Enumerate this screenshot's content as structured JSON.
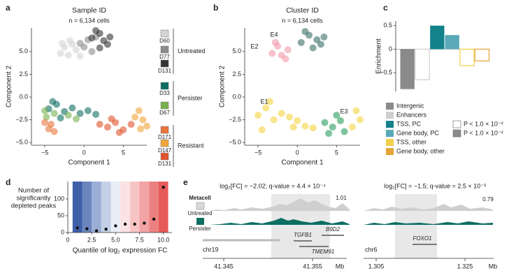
{
  "chart_data": [
    {
      "type": "scatter",
      "panel_label": "a",
      "title": "Sample ID",
      "subtitle": "n = 6,134 cells",
      "xlabel": "Component 1",
      "ylabel": "Component 2",
      "xlim": [
        -6.7,
        8
      ],
      "ylim": [
        -5.3,
        7.6
      ],
      "xticks": [
        {
          "value": -5,
          "label": "−5"
        },
        0,
        5
      ],
      "yticks": [
        {
          "value": -5,
          "label": "−5.0"
        },
        {
          "value": -2.5,
          "label": "−2.5"
        },
        {
          "value": 0,
          "label": "0.0"
        },
        2.5,
        {
          "value": 5,
          "label": "5.0"
        }
      ],
      "legend": "right",
      "legend_groups": [
        "Untreated",
        "Persister",
        "Resistant"
      ],
      "series": [
        {
          "name": "D60",
          "color": "#d4d4d4",
          "x": [
            -3,
            -2.5,
            -2,
            -1.5,
            -1,
            -2.8,
            -0.5,
            -1.8
          ],
          "values": [
            4.8,
            5.5,
            4.6,
            5.8,
            5.2,
            5.9,
            4.5,
            6.2
          ]
        },
        {
          "name": "D77",
          "color": "#8c8c8c",
          "x": [
            0,
            0.5,
            -0.5,
            1,
            1.5
          ],
          "values": [
            5.5,
            6.3,
            5.9,
            5.0,
            6.6
          ]
        },
        {
          "name": "D131",
          "color": "#333333",
          "x": [
            1,
            2,
            2.5,
            3,
            2,
            1.5,
            3.3
          ],
          "values": [
            6.5,
            7,
            6.2,
            5.8,
            5.4,
            7.3,
            6.6
          ]
        },
        {
          "name": "D33",
          "color": "#0e6e62",
          "x": [
            -4.5,
            -3.5,
            -2.5,
            -1.5,
            -0.5,
            0.5,
            -3,
            1.5,
            -4
          ],
          "values": [
            -1.3,
            -0.8,
            -1.6,
            -1.2,
            -1.8,
            -1.5,
            -2.3,
            -1.9,
            -0.5
          ]
        },
        {
          "name": "D67",
          "color": "#76b04f",
          "x": [
            -4.8,
            -3.8,
            -2,
            -5,
            -1
          ],
          "values": [
            -2.2,
            -1.8,
            -2.0,
            -1.5,
            -2.4
          ]
        },
        {
          "name": "D171",
          "color": "#e8743b",
          "x": [
            -4.5,
            -5,
            -3.8,
            -4.2
          ],
          "values": [
            -3.5,
            -2.8,
            -3.8,
            -3.0
          ]
        },
        {
          "name": "D147",
          "color": "#f2a53a",
          "x": [
            7,
            7.5,
            8,
            6.5,
            7.2
          ],
          "values": [
            -1.5,
            -2.5,
            -3.2,
            -2.2,
            -3.5
          ]
        },
        {
          "name": "D131",
          "color": "#e0542c",
          "x": [
            2,
            3,
            4,
            5,
            3.5,
            4.5,
            6
          ],
          "values": [
            -3,
            -3.3,
            -2.8,
            -3.6,
            -2.4,
            -3.9,
            -3
          ]
        }
      ]
    },
    {
      "type": "scatter",
      "panel_label": "b",
      "title": "Cluster ID",
      "subtitle": "n = 6,134 cells",
      "xlabel": "Component 1",
      "ylabel": "Component 2",
      "xlim": [
        -6.7,
        8
      ],
      "ylim": [
        -5.3,
        7.6
      ],
      "xticks": [
        {
          "value": -5,
          "label": "−5"
        },
        0,
        5
      ],
      "yticks": [
        {
          "value": -5,
          "label": "−5.0"
        },
        {
          "value": -2.5,
          "label": "−2.5"
        },
        {
          "value": 0,
          "label": "0.0"
        },
        2.5,
        {
          "value": 5,
          "label": "5.0"
        }
      ],
      "legend": "on-plot",
      "series": [
        {
          "name": "E1",
          "color": "#f5d33f",
          "x": [
            -5,
            -4,
            -3,
            -4.5,
            -2,
            -1,
            0,
            1,
            2,
            -3.5,
            -0.5,
            7.5,
            8,
            7
          ],
          "values": [
            -2,
            -1.2,
            -2.5,
            -3.6,
            -1.8,
            -2.2,
            -2.6,
            -3.2,
            -3.4,
            -0.5,
            -3.3,
            -1.5,
            -2.5,
            -3.3
          ]
        },
        {
          "name": "E2",
          "color": "#f29aa8",
          "x": [
            -3.2,
            -2.5,
            -2,
            -1.2,
            -2.8,
            -1.5
          ],
          "values": [
            4.8,
            5.6,
            4.6,
            5.2,
            6,
            4.2
          ]
        },
        {
          "name": "E3",
          "color": "#2a9d5c",
          "x": [
            3.5,
            4.5,
            5.5,
            6,
            4,
            5
          ],
          "values": [
            -2.8,
            -3.3,
            -2.6,
            -3.8,
            -4,
            -2
          ]
        },
        {
          "name": "E4",
          "color": "#3b6e68",
          "x": [
            0.5,
            1.5,
            2.5,
            3,
            2,
            1,
            3.4
          ],
          "values": [
            6,
            6.8,
            6.3,
            5.8,
            5.4,
            7.2,
            6.6
          ]
        }
      ]
    },
    {
      "type": "bar",
      "panel_label": "c",
      "ylabel": "Enrichment",
      "categories": [
        "Intergenic",
        "Enhancers",
        "TSS, PC",
        "Gene body, PC",
        "TSS, other",
        "Gene body, other"
      ],
      "values": [
        -0.85,
        -0.65,
        0.5,
        0.3,
        -0.35,
        -0.25
      ],
      "colors": [
        "#8a8a8a",
        "#cfcfcf",
        "#13828a",
        "#5aa9b8",
        "#f2cf4a",
        "#e3a437"
      ],
      "filled": [
        true,
        false,
        true,
        true,
        false,
        false
      ],
      "ylim": [
        -0.9,
        0.6
      ],
      "yticks": [
        {
          "value": -0.5,
          "label": "−0.5"
        },
        0,
        0.5
      ],
      "fill_legend": [
        {
          "label": "P < 1.0 × 10⁻²",
          "filled": false
        },
        {
          "label": "P < 1.0 × 10⁻²",
          "filled": true
        }
      ]
    },
    {
      "type": "dot",
      "panel_label": "d",
      "xlabel": "Quantile of log₂ expression FC",
      "ylabel": [
        "Number of",
        "significantly",
        "depleted peaks"
      ],
      "x": [
        1,
        2,
        3,
        4,
        5,
        6,
        7,
        8,
        9,
        10
      ],
      "values": [
        14,
        11,
        5,
        10,
        20,
        25,
        25,
        28,
        40,
        135
      ],
      "xlim": [
        0,
        10.9
      ],
      "ylim": [
        0,
        152
      ],
      "xticks": [
        0,
        2.5,
        {
          "value": 5,
          "label": "5.0"
        },
        7.5,
        {
          "value": 10,
          "label": "10.0"
        }
      ],
      "yticks": [
        0,
        50,
        100
      ],
      "band_colors": [
        "#3f5fa8",
        "#6c85bf",
        "#9aaed6",
        "#c4d0e8",
        "#e9edf6",
        "#fbe3e3",
        "#f7c4c4",
        "#f2a3a3",
        "#ec8080",
        "#e65a5a"
      ]
    }
  ],
  "genome_tracks": {
    "panel_label": "e",
    "track_title": "Metacell",
    "tracks": [
      "Untreated",
      "Persister"
    ],
    "unit": "Mb",
    "loci": [
      {
        "title": "log₂[FC] = −2.02; q-value = 4.4 × 10⁻⁴",
        "scale_max": 1.01,
        "chrom": "chr19",
        "genes": [
          "TGFB1",
          "B9D2",
          "TMEM91"
        ],
        "ticks": [
          41.345,
          41.355
        ]
      },
      {
        "title": "log₂[FC] = −1.5; q-value = 2.5 × 10⁻³",
        "scale_max": 0.79,
        "chrom": "chr6",
        "genes": [
          "FOXO1"
        ],
        "ticks": [
          1.305,
          1.325
        ]
      }
    ]
  }
}
